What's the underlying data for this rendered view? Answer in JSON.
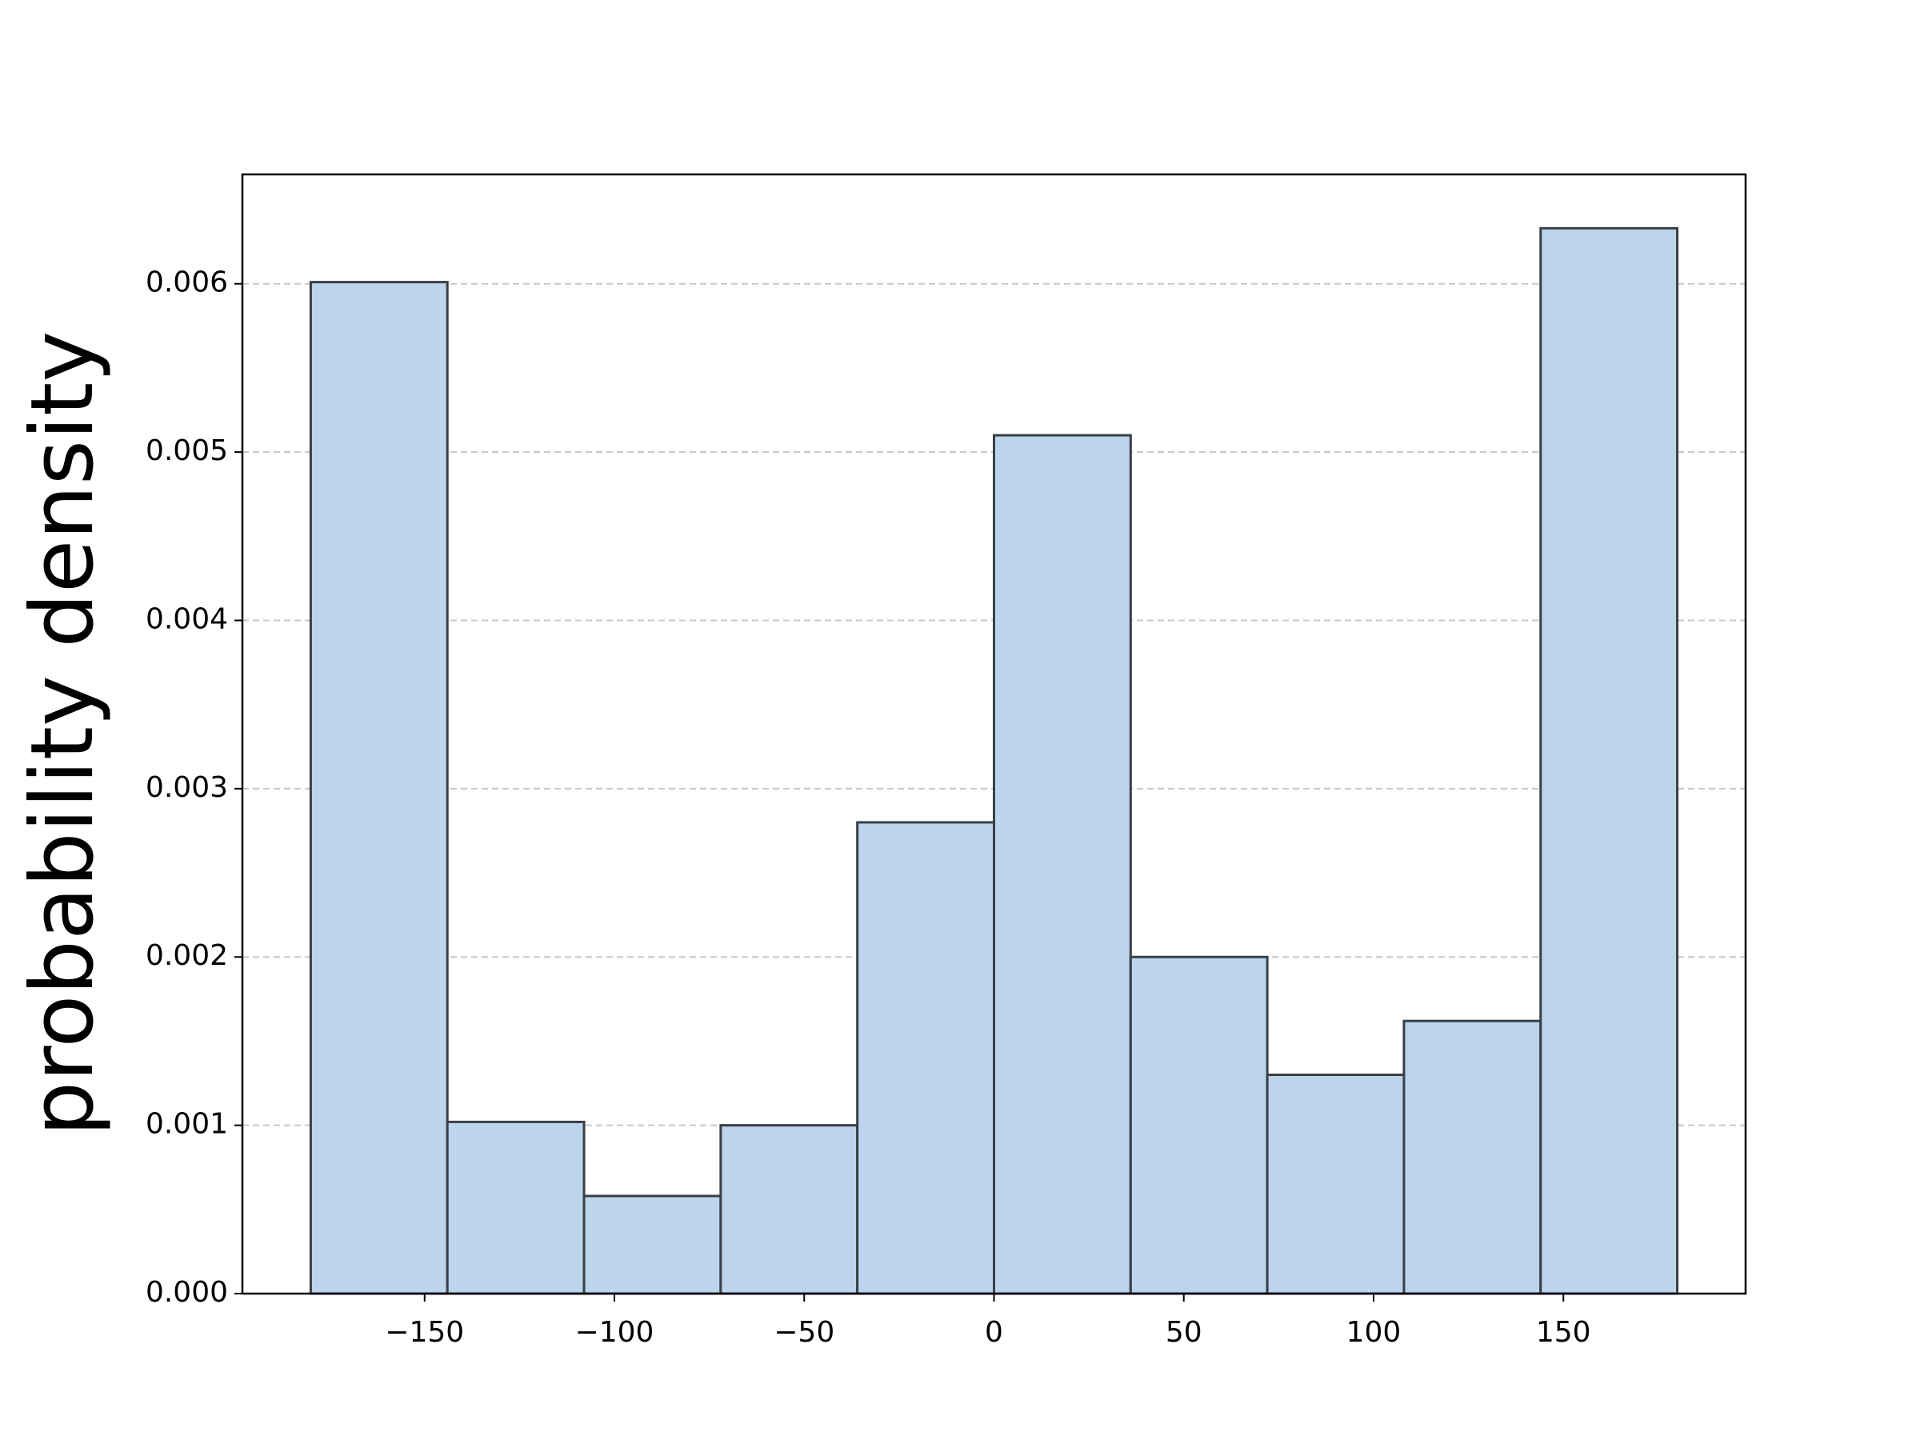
{
  "chart_data": {
    "type": "histogram",
    "ylabel": "probability density",
    "bins": [
      -180,
      -144,
      -108,
      -72,
      -36,
      0,
      36,
      72,
      108,
      144,
      180
    ],
    "values": [
      0.00601,
      0.00102,
      0.00058,
      0.001,
      0.0028,
      0.0051,
      0.002,
      0.0013,
      0.00162,
      0.00633
    ],
    "color": "#bcd5ed",
    "edgecolor": "#3a3f44",
    "xlim": [
      -198,
      198
    ],
    "xticks": [
      {
        "value": -150,
        "label": "−150"
      },
      {
        "value": -100,
        "label": "−100"
      },
      {
        "value": -50,
        "label": "−50"
      },
      0,
      50,
      100,
      150
    ],
    "ylim": [
      0,
      0.00665
    ],
    "yticks": [
      {
        "value": 0,
        "label": "0.000"
      },
      {
        "value": 0.001,
        "label": "0.001"
      },
      {
        "value": 0.002,
        "label": "0.002"
      },
      {
        "value": 0.003,
        "label": "0.003"
      },
      {
        "value": 0.004,
        "label": "0.004"
      },
      {
        "value": 0.005,
        "label": "0.005"
      },
      {
        "value": 0.006,
        "label": "0.006"
      }
    ],
    "grid": true
  }
}
